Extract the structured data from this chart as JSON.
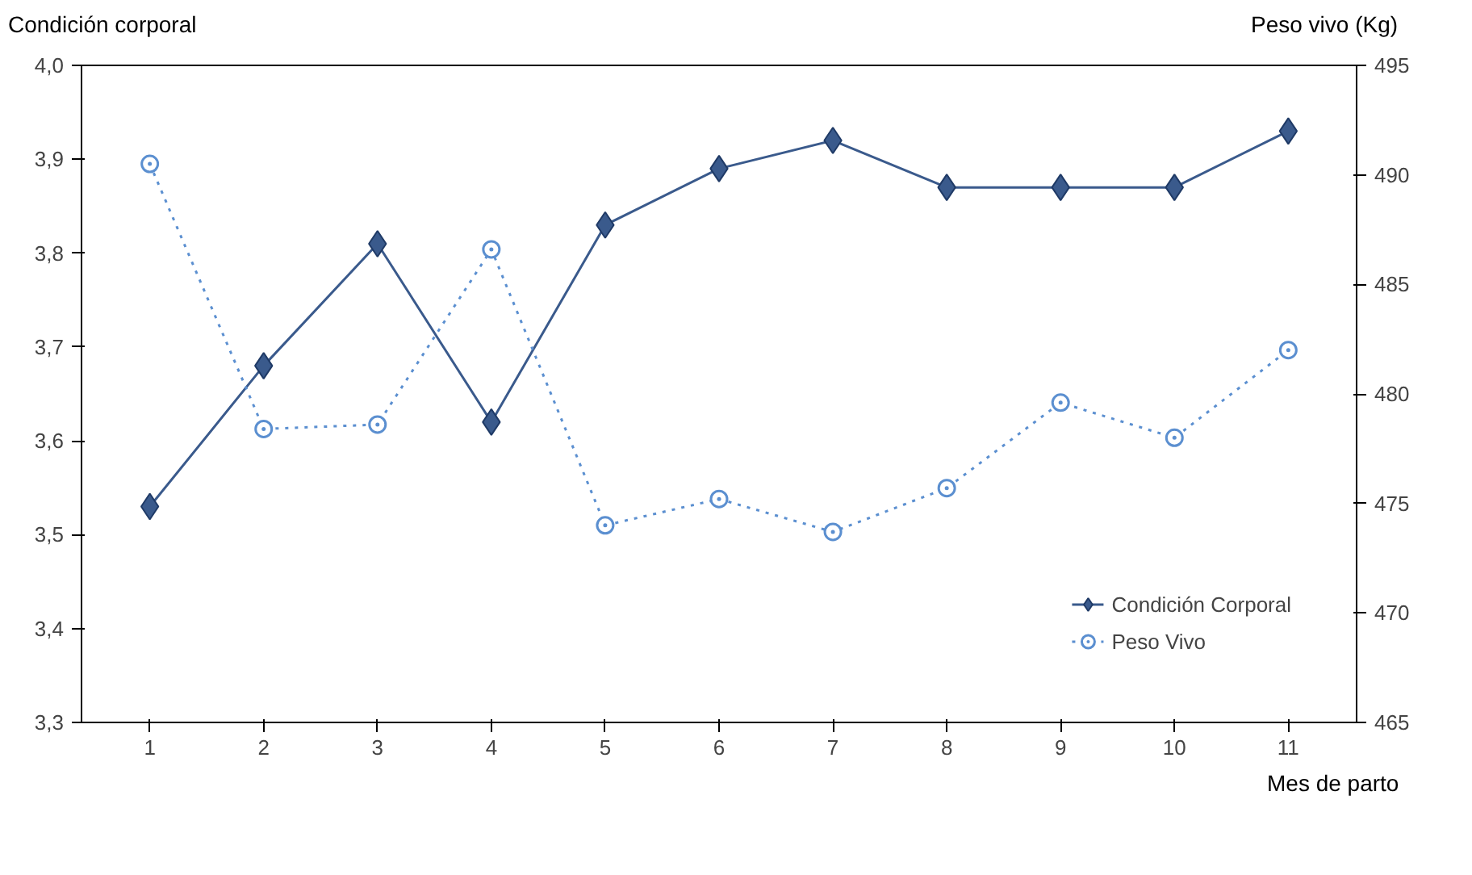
{
  "chart_data": {
    "type": "line",
    "xlabel": "Mes de parto",
    "ylabel": "Condición corporal",
    "y2label": "Peso vivo (Kg)",
    "categories": [
      "1",
      "2",
      "3",
      "4",
      "5",
      "6",
      "7",
      "8",
      "9",
      "10",
      "11"
    ],
    "series": [
      {
        "name": "Condición Corporal",
        "color": "#3a5a8c",
        "marker": "diamond",
        "line_style": "solid",
        "values": [
          3.53,
          3.68,
          3.81,
          3.62,
          3.83,
          3.89,
          3.92,
          3.87,
          3.87,
          3.87,
          3.93
        ]
      },
      {
        "name": "Peso Vivo",
        "color": "#5b8fd0",
        "marker": "circle",
        "line_style": "dotted",
        "axis": "y2",
        "values": [
          490.5,
          478.4,
          478.6,
          486.6,
          474.0,
          475.2,
          473.7,
          475.7,
          479.6,
          478.0,
          482.0
        ]
      }
    ],
    "ylim": [
      3.3,
      4.0
    ],
    "yticks": [
      {
        "value": 3.3,
        "label": "3,3"
      },
      {
        "value": 3.4,
        "label": "3,4"
      },
      {
        "value": 3.5,
        "label": "3,5"
      },
      {
        "value": 3.6,
        "label": "3,6"
      },
      {
        "value": 3.7,
        "label": "3,7"
      },
      {
        "value": 3.8,
        "label": "3,8"
      },
      {
        "value": 3.9,
        "label": "3,9"
      },
      {
        "value": 4.0,
        "label": "4,0"
      }
    ],
    "y2lim": [
      465,
      495
    ],
    "y2ticks": [
      465,
      470,
      475,
      480,
      485,
      490,
      495
    ],
    "grid": false,
    "legend": "bottom right"
  }
}
